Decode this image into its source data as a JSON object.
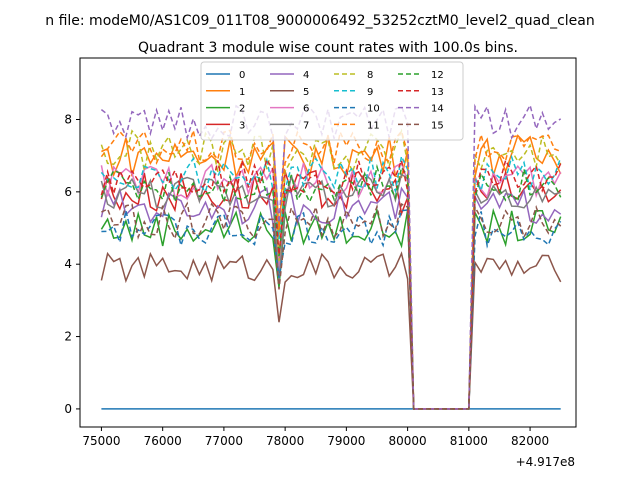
{
  "chart_data": {
    "type": "line",
    "suptitle": "n file: modeM0/AS1C09_011T08_9000006492_53252cztM0_level2_quad_clean",
    "title": "Quadrant 3 module wise count rates with 100.0s bins.",
    "xlabel": "",
    "ylabel": "",
    "x_offset_label": "+4.917e8",
    "xlim": [
      74650,
      82750
    ],
    "ylim": [
      -0.5,
      9.7
    ],
    "x_ticks": [
      75000,
      76000,
      77000,
      78000,
      79000,
      80000,
      81000,
      82000
    ],
    "y_ticks": [
      0,
      2,
      4,
      6,
      8
    ],
    "gap": [
      80000,
      81100
    ],
    "x_range": [
      75000,
      82500
    ],
    "x_step": 100,
    "legend_location": "upper center",
    "legend_columns": 4,
    "series": [
      {
        "name": "0",
        "color": "#1f77b4",
        "style": "solid",
        "mean": 0.0,
        "amp": 0.0
      },
      {
        "name": "1",
        "color": "#ff7f0e",
        "style": "solid",
        "mean": 7.0,
        "amp": 0.6
      },
      {
        "name": "2",
        "color": "#2ca02c",
        "style": "solid",
        "mean": 5.0,
        "amp": 0.5
      },
      {
        "name": "3",
        "color": "#d62728",
        "style": "solid",
        "mean": 6.0,
        "amp": 0.6
      },
      {
        "name": "4",
        "color": "#9467bd",
        "style": "solid",
        "mean": 5.6,
        "amp": 0.5
      },
      {
        "name": "5",
        "color": "#8c564b",
        "style": "solid",
        "mean": 3.9,
        "amp": 0.4
      },
      {
        "name": "6",
        "color": "#e377c2",
        "style": "solid",
        "mean": 6.3,
        "amp": 0.5
      },
      {
        "name": "7",
        "color": "#7f7f7f",
        "style": "solid",
        "mean": 6.0,
        "amp": 0.5
      },
      {
        "name": "8",
        "color": "#bcbd22",
        "style": "dashed",
        "mean": 7.1,
        "amp": 0.6
      },
      {
        "name": "9",
        "color": "#17becf",
        "style": "dashed",
        "mean": 6.5,
        "amp": 0.5
      },
      {
        "name": "10",
        "color": "#1f77b4",
        "style": "dashed",
        "mean": 5.0,
        "amp": 0.5
      },
      {
        "name": "11",
        "color": "#ff7f0e",
        "style": "dashed",
        "mean": 7.2,
        "amp": 0.5
      },
      {
        "name": "12",
        "color": "#2ca02c",
        "style": "dashed",
        "mean": 6.2,
        "amp": 0.5
      },
      {
        "name": "13",
        "color": "#d62728",
        "style": "dashed",
        "mean": 6.4,
        "amp": 0.5
      },
      {
        "name": "14",
        "color": "#9467bd",
        "style": "dashed",
        "mean": 7.9,
        "amp": 0.5
      },
      {
        "name": "15",
        "color": "#8c564b",
        "style": "dashed",
        "mean": 5.2,
        "amp": 0.5
      }
    ]
  }
}
